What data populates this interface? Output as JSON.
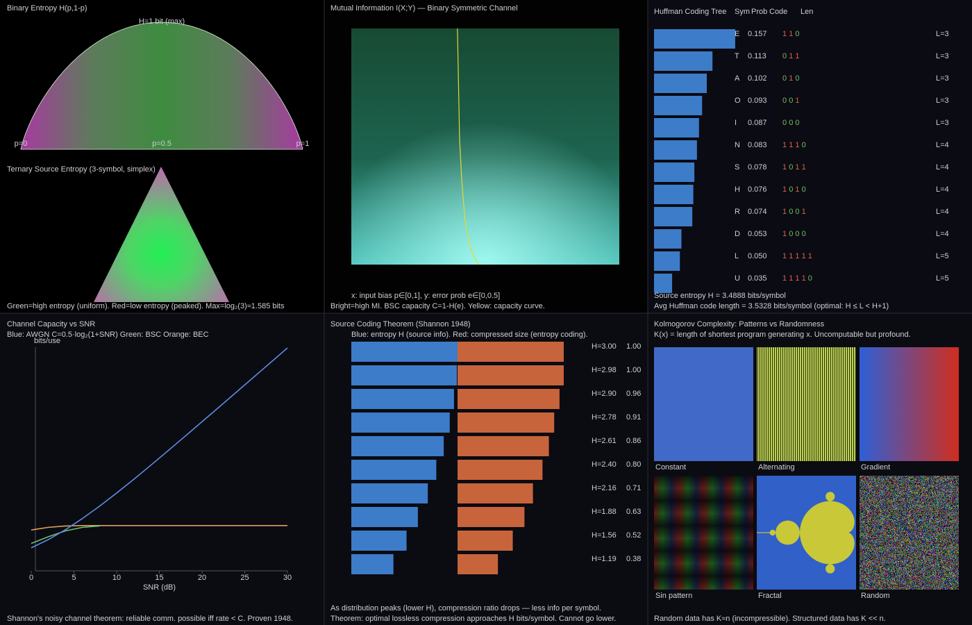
{
  "chart_data": [
    {
      "type": "area",
      "title": "Binary Entropy H(p,1-p)",
      "annotation": "H=1 bit (max)",
      "xlim": [
        0,
        1
      ],
      "ylim": [
        0,
        1
      ],
      "xticks": [
        {
          "value": 0,
          "label": "p=0"
        },
        {
          "value": 0.5,
          "label": "p=0.5"
        },
        {
          "value": 1,
          "label": "p=1"
        }
      ]
    },
    {
      "type": "ternary",
      "title": "Ternary Source Entropy (3-symbol, simplex)",
      "note": "Green=high entropy (uniform). Red=low entropy (peaked). Max=log₂(3)≈1.585 bits"
    },
    {
      "type": "heatmap",
      "title": "Mutual Information I(X;Y) — Binary Symmetric Channel",
      "xlabel": "x: input bias p∈[0,1], y: error prob e∈[0,0.5]",
      "note": "Bright=high MI. BSC capacity C=1-H(e). Yellow: capacity curve.",
      "xlim": [
        0,
        1
      ],
      "ylim": [
        0,
        0.5
      ],
      "color": "#e8d830",
      "x": [
        0.396,
        0.399,
        0.404,
        0.412,
        0.425,
        0.443,
        0.461,
        0.477
      ],
      "values": [
        0.5,
        0.413,
        0.266,
        0.178,
        0.09,
        0.038,
        0.013,
        0
      ]
    },
    {
      "type": "bar",
      "title": "Huffman Coding Tree",
      "columns": [
        "Sym",
        "Prob",
        "Code",
        "Len"
      ],
      "categories": [
        "E",
        "T",
        "A",
        "O",
        "I",
        "N",
        "S",
        "H",
        "R",
        "D",
        "L",
        "U"
      ],
      "values": [
        0.157,
        0.113,
        0.102,
        0.093,
        0.087,
        0.083,
        0.078,
        0.076,
        0.074,
        0.053,
        0.05,
        0.035
      ],
      "value_labels": [
        "0.157",
        "0.113",
        "0.102",
        "0.093",
        "0.087",
        "0.083",
        "0.078",
        "0.076",
        "0.074",
        "0.053",
        "0.050",
        "0.035"
      ],
      "codes": [
        "1 1 0",
        "0 1 1",
        "0 1 0",
        "0 0 1",
        "0 0 0",
        "1 1 1 0",
        "1 0 1 1",
        "1 0 1 0",
        "1 0 0 1",
        "1 0 0 0",
        "1 1 1 1 1",
        "1 1 1 1 0"
      ],
      "length_labels": [
        "L=3",
        "L=3",
        "L=3",
        "L=3",
        "L=3",
        "L=4",
        "L=4",
        "L=4",
        "L=4",
        "L=4",
        "L=5",
        "L=5"
      ],
      "color": "#3d7cc9",
      "notes": [
        "Source entropy H = 3.4888 bits/symbol",
        "Avg Huffman code length = 3.5328 bits/symbol  (optimal: H ≤ L < H+1)"
      ]
    },
    {
      "type": "line",
      "title": "Channel Capacity vs SNR",
      "subtitle": "Blue: AWGN C=0.5·log₂(1+SNR)  Green: BSC  Orange: BEC",
      "ylabel": "bits/use",
      "xlabel": "SNR (dB)",
      "x": [
        0,
        2,
        4,
        6,
        8,
        10,
        12,
        14,
        16,
        18,
        20,
        22,
        24,
        26,
        28,
        30
      ],
      "xlim": [
        0,
        30
      ],
      "xticks": [
        0,
        5,
        10,
        15,
        20,
        25,
        30
      ],
      "ylim": [
        0,
        5
      ],
      "series": [
        {
          "color": "#e0a060",
          "values": [
            0.9,
            0.96,
            0.99,
            1,
            1,
            1,
            1,
            1,
            1,
            1,
            1,
            1,
            1,
            1,
            1,
            1
          ]
        },
        {
          "color": "#6cc070",
          "values": [
            0.6,
            0.75,
            0.88,
            0.96,
            0.99,
            null,
            null,
            null,
            null,
            null,
            null,
            null,
            null,
            null,
            null,
            null
          ]
        },
        {
          "color": "#5b8de0",
          "values": [
            0.5,
            0.685,
            0.906,
            1.159,
            1.435,
            1.73,
            2.037,
            2.353,
            2.676,
            3.001,
            3.329,
            3.659,
            3.989,
            4.32,
            4.652,
            4.984
          ]
        }
      ],
      "note": "Shannon's noisy channel theorem: reliable comm. possible iff rate < C. Proven 1948."
    },
    {
      "type": "bar",
      "title": "Source Coding Theorem (Shannon 1948)",
      "subtitle": "Blue: entropy H (source info). Red: compressed size (entropy coding).",
      "series": [
        {
          "color": "#3d7cc9",
          "values": [
            3,
            2.98,
            2.9,
            2.78,
            2.61,
            2.4,
            2.16,
            1.88,
            1.56,
            1.19
          ],
          "value_labels": [
            "H=3.00",
            "H=2.98",
            "H=2.90",
            "H=2.78",
            "H=2.61",
            "H=2.40",
            "H=2.16",
            "H=1.88",
            "H=1.56",
            "H=1.19"
          ]
        },
        {
          "color": "#c8643c",
          "values": [
            1,
            1,
            0.96,
            0.91,
            0.86,
            0.8,
            0.71,
            0.63,
            0.52,
            0.38
          ],
          "value_labels": [
            "1.00",
            "1.00",
            "0.96",
            "0.91",
            "0.86",
            "0.80",
            "0.71",
            "0.63",
            "0.52",
            "0.38"
          ]
        }
      ],
      "notes": [
        "As distribution peaks (lower H), compression ratio drops — less info per symbol.",
        "Theorem: optimal lossless compression approaches H bits/symbol. Cannot go lower."
      ]
    },
    {
      "type": "image-grid",
      "title": "Kolmogorov Complexity: Patterns vs Randomness",
      "subtitle": "K(x) = length of shortest program generating x. Uncomputable but profound.",
      "categories": [
        "Constant",
        "Alternating",
        "Gradient",
        "Sin pattern",
        "Fractal",
        "Random"
      ],
      "note": "Random data has K≈n (incompressible). Structured data has K << n."
    }
  ]
}
